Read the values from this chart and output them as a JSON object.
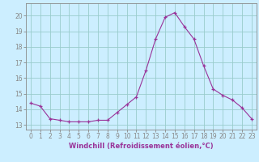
{
  "hours": [
    0,
    1,
    2,
    3,
    4,
    5,
    6,
    7,
    8,
    9,
    10,
    11,
    12,
    13,
    14,
    15,
    16,
    17,
    18,
    19,
    20,
    21,
    22,
    23
  ],
  "windchill": [
    14.4,
    14.2,
    13.4,
    13.3,
    13.2,
    13.2,
    13.2,
    13.3,
    13.3,
    13.8,
    14.3,
    14.8,
    16.5,
    18.5,
    19.9,
    20.2,
    19.3,
    18.5,
    16.8,
    15.3,
    14.9,
    14.6,
    14.1,
    13.4
  ],
  "ylabel_ticks": [
    13,
    14,
    15,
    16,
    17,
    18,
    19,
    20
  ],
  "ylim": [
    12.7,
    20.8
  ],
  "xlim": [
    -0.5,
    23.5
  ],
  "xlabel": "Windchill (Refroidissement éolien,°C)",
  "line_color": "#993399",
  "marker": "+",
  "bg_color": "#cceeff",
  "grid_color": "#99cccc",
  "spine_color": "#888888",
  "text_color": "#993399",
  "tick_label_fontsize": 5.5,
  "xlabel_fontsize": 6.0
}
